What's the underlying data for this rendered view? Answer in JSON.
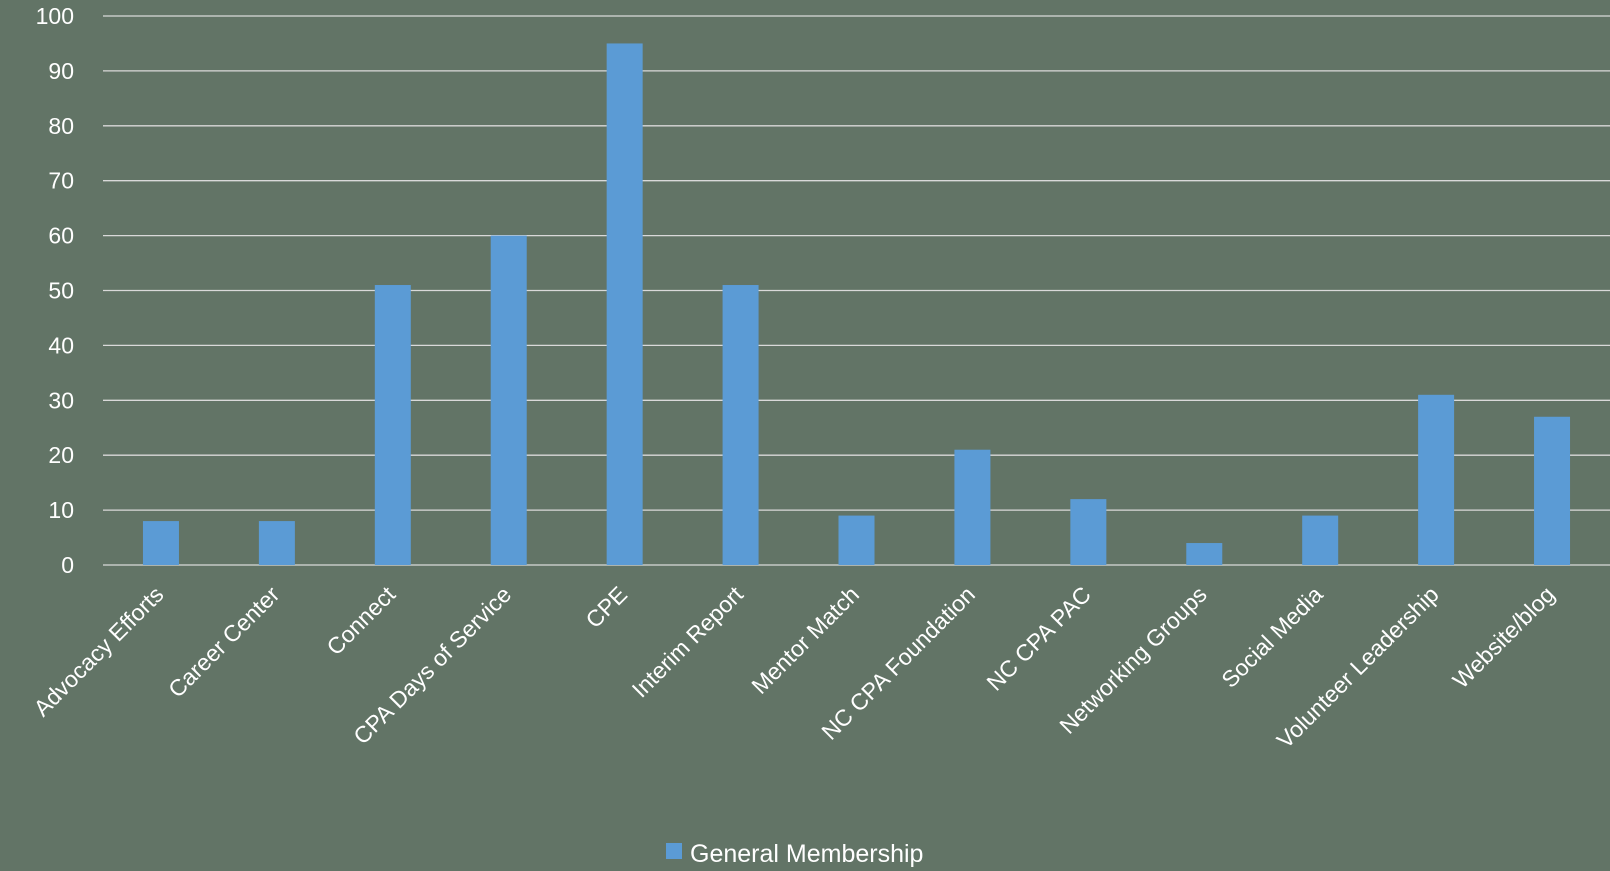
{
  "chart_data": {
    "type": "bar",
    "title": "",
    "xlabel": "",
    "ylabel": "",
    "ylim": [
      0,
      100
    ],
    "yticks": [
      0,
      10,
      20,
      30,
      40,
      50,
      60,
      70,
      80,
      90,
      100
    ],
    "grid": true,
    "legend_position": "bottom",
    "categories": [
      "Advocacy Efforts",
      "Career Center",
      "Connect",
      "CPA Days of Service",
      "CPE",
      "Interim Report",
      "Mentor Match",
      "NC CPA Foundation",
      "NC CPA PAC",
      "Networking Groups",
      "Social Media",
      "Volunteer Leadership",
      "Website/blog"
    ],
    "series": [
      {
        "name": "General Membership",
        "color": "#5b9bd5",
        "values": [
          8,
          8,
          51,
          60,
          95,
          51,
          9,
          21,
          12,
          4,
          9,
          31,
          27
        ]
      }
    ]
  },
  "colors": {
    "background": "#627466",
    "gridline": "#d9d9d9",
    "text": "#ffffff"
  }
}
